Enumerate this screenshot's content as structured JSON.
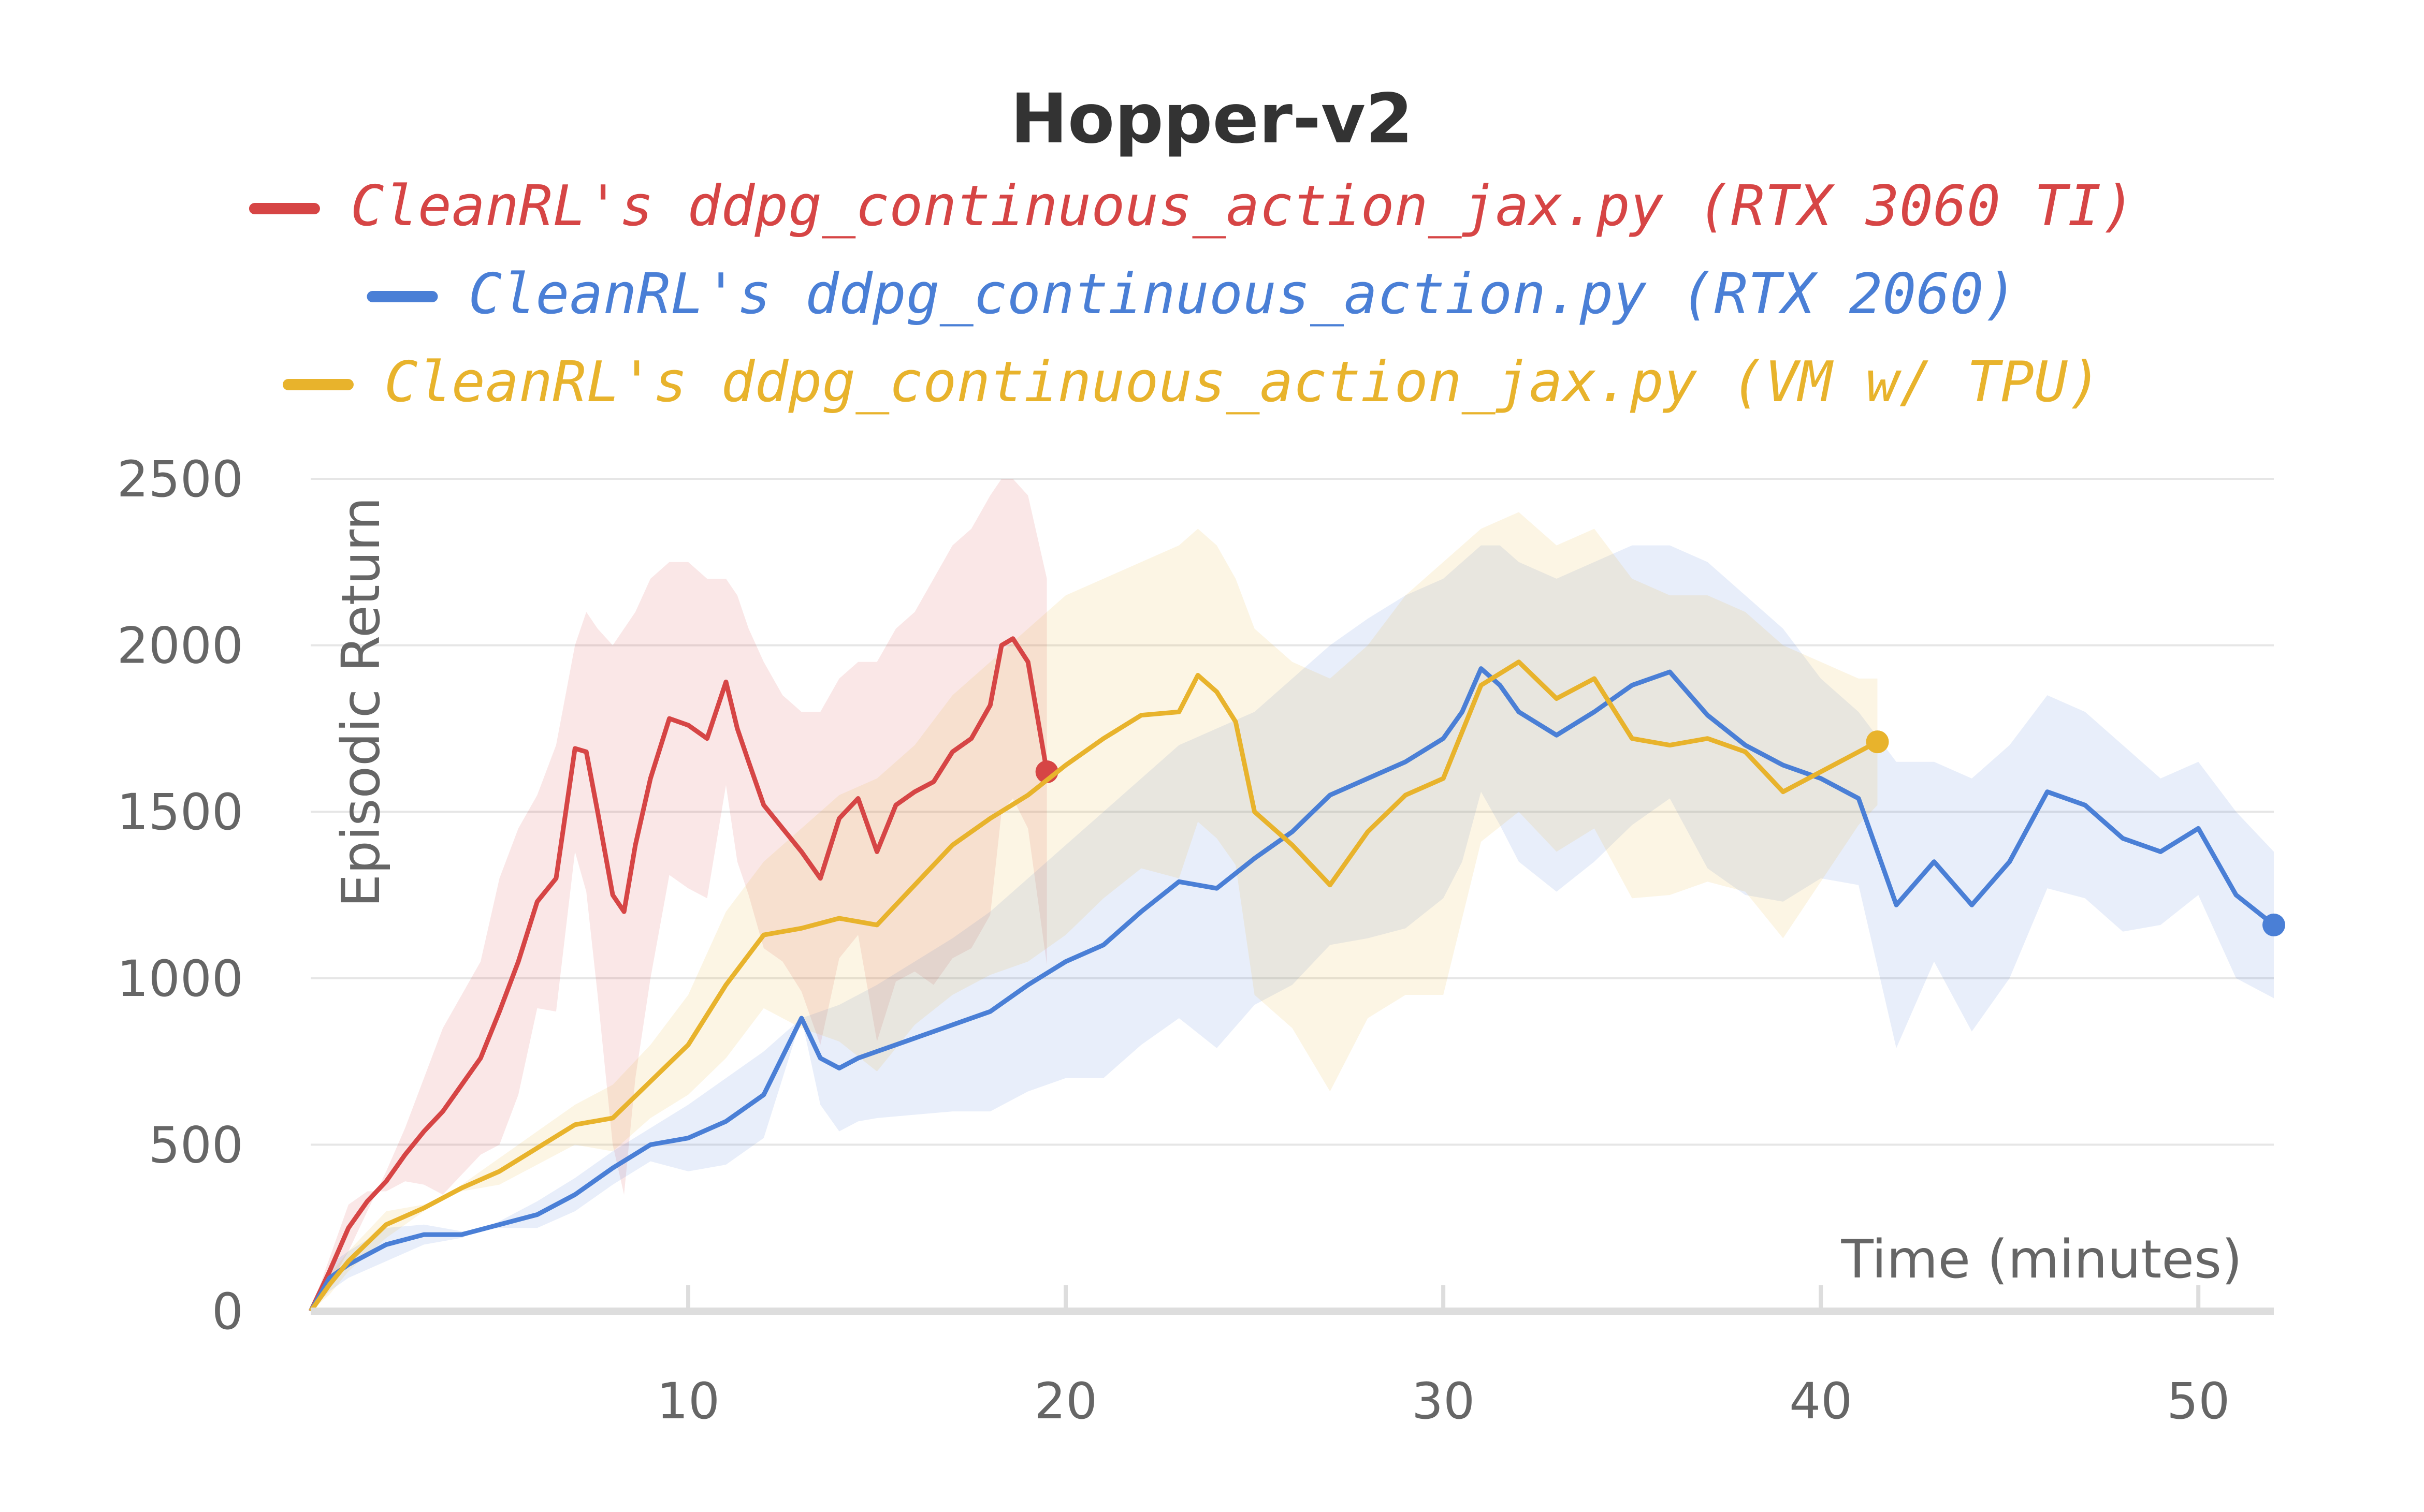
{
  "chart_data": {
    "type": "line",
    "title": "Hopper-v2",
    "xlabel": "Time (minutes)",
    "ylabel": "Episodic Return",
    "xlim": [
      0,
      52
    ],
    "ylim": [
      0,
      2500
    ],
    "x_ticks": [
      10,
      20,
      30,
      40,
      50
    ],
    "y_ticks": [
      0,
      500,
      1000,
      1500,
      2000,
      2500
    ],
    "grid": true,
    "legend_position": "top-center",
    "series": [
      {
        "name": "CleanRL's ddpg_continuous_action_jax.py (RTX 3060 TI)",
        "color": "#d64545",
        "x": [
          0,
          0.5,
          1,
          1.5,
          2,
          2.5,
          3,
          3.5,
          4,
          4.5,
          5,
          5.5,
          6,
          6.5,
          7,
          7.3,
          7.6,
          8,
          8.3,
          8.6,
          9,
          9.5,
          10,
          10.5,
          11,
          11.3,
          11.6,
          12,
          12.5,
          13,
          13.5,
          14,
          14.5,
          15,
          15.5,
          16,
          16.5,
          17,
          17.5,
          18,
          18.3,
          18.6,
          19,
          19.5
        ],
        "values": [
          0,
          120,
          250,
          330,
          390,
          470,
          540,
          600,
          680,
          760,
          900,
          1050,
          1230,
          1300,
          1690,
          1680,
          1500,
          1250,
          1200,
          1400,
          1600,
          1780,
          1760,
          1720,
          1890,
          1750,
          1650,
          1520,
          1450,
          1380,
          1300,
          1480,
          1540,
          1380,
          1520,
          1560,
          1590,
          1680,
          1720,
          1820,
          2000,
          2020,
          1950,
          1620
        ],
        "band": [
          0,
          80,
          180,
          300,
          420,
          550,
          700,
          850,
          950,
          1050,
          1300,
          1450,
          1550,
          1700,
          2000,
          2100,
          2050,
          2000,
          2050,
          2100,
          2200,
          2250,
          2250,
          2200,
          2200,
          2150,
          2050,
          1950,
          1850,
          1800,
          1800,
          1900,
          1950,
          1950,
          2050,
          2100,
          2200,
          2300,
          2350,
          2450,
          2500,
          2500,
          2450,
          2200
        ]
      },
      {
        "name": "CleanRL's ddpg_continuous_action.py (RTX 2060)",
        "color": "#4a7fd6",
        "x": [
          0,
          0.5,
          1,
          2,
          3,
          4,
          5,
          6,
          7,
          8,
          9,
          10,
          11,
          12,
          13,
          13.5,
          14,
          14.5,
          15,
          16,
          17,
          18,
          19,
          20,
          21,
          22,
          23,
          24,
          25,
          26,
          27,
          28,
          29,
          30,
          30.5,
          31,
          31.5,
          32,
          33,
          34,
          35,
          36,
          37,
          38,
          39,
          40,
          41,
          42,
          43,
          44,
          45,
          46,
          47,
          48,
          49,
          50,
          51,
          52
        ],
        "values": [
          0,
          100,
          140,
          200,
          230,
          230,
          260,
          290,
          350,
          430,
          500,
          520,
          570,
          650,
          880,
          760,
          730,
          760,
          780,
          820,
          860,
          900,
          980,
          1050,
          1100,
          1200,
          1290,
          1270,
          1360,
          1440,
          1550,
          1600,
          1650,
          1720,
          1800,
          1930,
          1880,
          1800,
          1730,
          1800,
          1880,
          1920,
          1790,
          1700,
          1640,
          1600,
          1540,
          1220,
          1350,
          1220,
          1350,
          1560,
          1520,
          1420,
          1380,
          1450,
          1250,
          1160
        ],
        "band": [
          0,
          60,
          100,
          150,
          200,
          220,
          270,
          330,
          400,
          480,
          550,
          620,
          700,
          780,
          880,
          900,
          920,
          950,
          980,
          1050,
          1120,
          1200,
          1300,
          1400,
          1500,
          1600,
          1700,
          1750,
          1800,
          1900,
          2000,
          2080,
          2150,
          2200,
          2250,
          2300,
          2300,
          2250,
          2200,
          2250,
          2300,
          2300,
          2250,
          2150,
          2050,
          1900,
          1800,
          1650,
          1650,
          1600,
          1700,
          1850,
          1800,
          1700,
          1600,
          1650,
          1500,
          1380
        ]
      },
      {
        "name": "CleanRL's ddpg_continuous_action_jax.py (VM w/ TPU)",
        "color": "#e8b32c",
        "x": [
          0,
          0.5,
          1,
          2,
          3,
          4,
          5,
          6,
          7,
          8,
          9,
          10,
          11,
          12,
          13,
          14,
          15,
          16,
          17,
          18,
          19,
          20,
          21,
          22,
          23,
          23.5,
          24,
          24.5,
          25,
          26,
          27,
          28,
          29,
          30,
          31,
          32,
          33,
          34,
          35,
          36,
          37,
          38,
          39,
          40,
          41,
          41.5
        ],
        "values": [
          0,
          80,
          150,
          260,
          310,
          370,
          420,
          490,
          560,
          580,
          690,
          800,
          980,
          1130,
          1150,
          1180,
          1160,
          1280,
          1400,
          1480,
          1550,
          1640,
          1720,
          1790,
          1800,
          1910,
          1860,
          1770,
          1500,
          1400,
          1280,
          1440,
          1550,
          1600,
          1880,
          1950,
          1840,
          1900,
          1720,
          1700,
          1720,
          1680,
          1560,
          1620,
          1680,
          1710
        ],
        "band": [
          0,
          50,
          120,
          220,
          300,
          380,
          460,
          540,
          620,
          680,
          800,
          950,
          1200,
          1350,
          1450,
          1550,
          1600,
          1700,
          1850,
          1950,
          2050,
          2150,
          2200,
          2250,
          2300,
          2350,
          2300,
          2200,
          2050,
          1950,
          1900,
          2000,
          2150,
          2250,
          2350,
          2400,
          2300,
          2350,
          2200,
          2150,
          2150,
          2100,
          2000,
          1950,
          1900,
          1900
        ]
      }
    ]
  }
}
